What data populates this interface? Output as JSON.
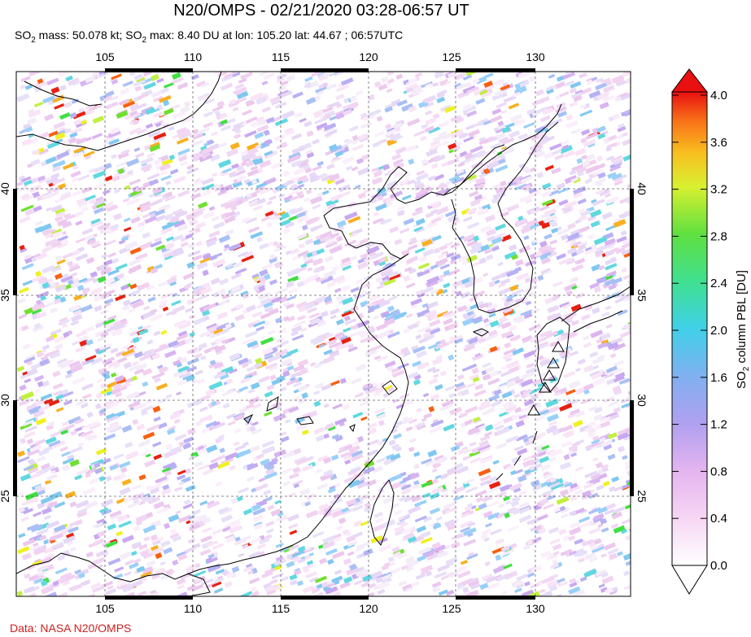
{
  "title": "N20/OMPS - 02/21/2020 03:28-06:57 UT",
  "subtitle": {
    "mass_prefix": "SO",
    "mass_sub": "2",
    "mass_text": " mass: 50.078 kt; SO",
    "max_sub": "2",
    "max_text": " max: 8.40 DU at lon: 105.20 lat: 44.67 ; 06:57UTC"
  },
  "credit": "Data: NASA N20/OMPS",
  "map": {
    "lon_ticks": [
      "105",
      "110",
      "115",
      "120",
      "125",
      "130"
    ],
    "lat_ticks": [
      "40",
      "35",
      "30",
      "25"
    ]
  },
  "colorbar": {
    "label_prefix": "SO",
    "label_sub": "2",
    "label_text": " column PBL [DU]",
    "tick_labels": [
      "4.0",
      "3.6",
      "3.2",
      "2.8",
      "2.4",
      "2.0",
      "1.6",
      "1.2",
      "0.8",
      "0.4",
      "0.0"
    ],
    "colors": [
      "#ffffff",
      "#f7c8f2",
      "#d8b0f0",
      "#a0a0f0",
      "#60c8f0",
      "#40e0c0",
      "#40e040",
      "#c0f040",
      "#f8f020",
      "#f8a020",
      "#f84010",
      "#e01010"
    ]
  }
}
